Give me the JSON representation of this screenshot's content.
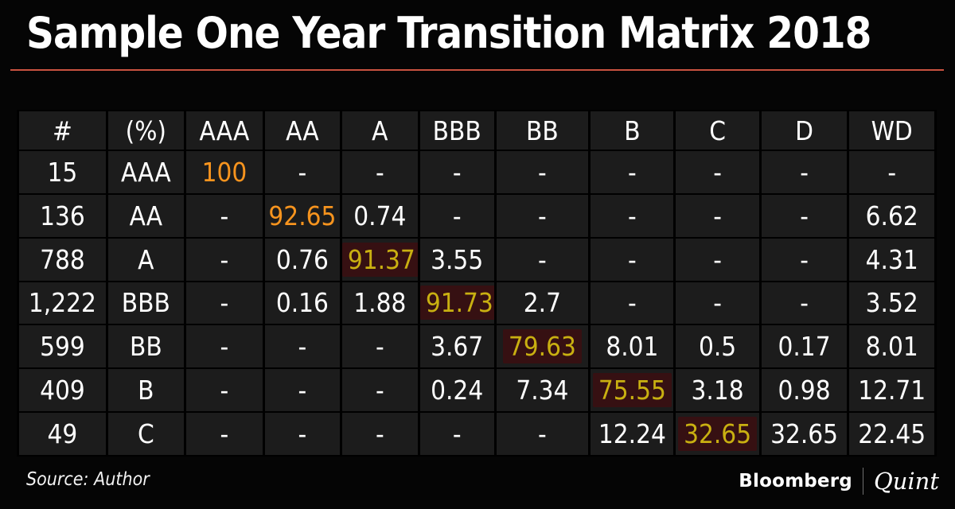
{
  "title": "Sample One Year Transition Matrix 2018",
  "source_label": "Source: Author",
  "branding": {
    "bloomberg": "Bloomberg",
    "quint": "Quint"
  },
  "colors": {
    "page_background": "#050505",
    "cell_background": "#1c1c1c",
    "grid_line": "#000000",
    "text_default": "#ffffff",
    "accent_orange": "#f7941e",
    "diagonal_yellow": "#c9b011",
    "diagonal_highlight_background": "#361012",
    "title_rule_red": "#c95340"
  },
  "chart_data": {
    "type": "table",
    "title": "Sample One Year Transition Matrix 2018",
    "columns": [
      "#",
      "(%)",
      "AAA",
      "AA",
      "A",
      "BBB",
      "BB",
      "B",
      "C",
      "D",
      "WD"
    ],
    "rows": [
      {
        "count": "15",
        "rating": "AAA",
        "values": [
          "100",
          "-",
          "-",
          "-",
          "-",
          "-",
          "-",
          "-",
          "-"
        ],
        "highlight": {
          "col": 0,
          "type": "orange"
        }
      },
      {
        "count": "136",
        "rating": "AA",
        "values": [
          "-",
          "92.65",
          "0.74",
          "-",
          "-",
          "-",
          "-",
          "-",
          "6.62"
        ],
        "highlight": {
          "col": 1,
          "type": "orange"
        }
      },
      {
        "count": "788",
        "rating": "A",
        "values": [
          "-",
          "0.76",
          "91.37",
          "3.55",
          "-",
          "-",
          "-",
          "-",
          "4.31"
        ],
        "highlight": {
          "col": 2,
          "type": "diagonal"
        }
      },
      {
        "count": "1,222",
        "rating": "BBB",
        "values": [
          "-",
          "0.16",
          "1.88",
          "91.73",
          "2.7",
          "-",
          "-",
          "-",
          "3.52"
        ],
        "highlight": {
          "col": 3,
          "type": "diagonal"
        }
      },
      {
        "count": "599",
        "rating": "BB",
        "values": [
          "-",
          "-",
          "-",
          "3.67",
          "79.63",
          "8.01",
          "0.5",
          "0.17",
          "8.01"
        ],
        "highlight": {
          "col": 4,
          "type": "diagonal"
        }
      },
      {
        "count": "409",
        "rating": "B",
        "values": [
          "-",
          "-",
          "-",
          "0.24",
          "7.34",
          "75.55",
          "3.18",
          "0.98",
          "12.71"
        ],
        "highlight": {
          "col": 5,
          "type": "diagonal"
        }
      },
      {
        "count": "49",
        "rating": "C",
        "values": [
          "-",
          "-",
          "-",
          "-",
          "-",
          "12.24",
          "32.65",
          "32.65",
          "22.45"
        ],
        "highlight": {
          "col": 6,
          "type": "diagonal"
        }
      }
    ]
  }
}
